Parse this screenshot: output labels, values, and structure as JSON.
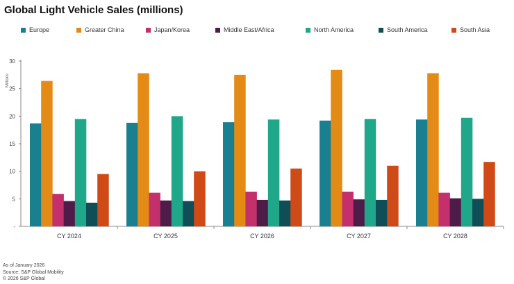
{
  "chart_data": {
    "type": "bar",
    "title": "Global Light Vehicle Sales (millions)",
    "ylabel": "Millions",
    "ylim": [
      0,
      30
    ],
    "yticks": [
      0,
      5,
      10,
      15,
      20,
      25,
      30
    ],
    "categories": [
      "CY 2024",
      "CY 2025",
      "CY 2026",
      "CY 2027",
      "CY 2028"
    ],
    "grid": false,
    "legend_position": "top",
    "series": [
      {
        "name": "Europe",
        "color": "#1a7f8f",
        "values": [
          18.7,
          18.8,
          18.9,
          19.2,
          19.4
        ]
      },
      {
        "name": "Greater China",
        "color": "#e38b14",
        "values": [
          26.4,
          27.8,
          27.5,
          28.4,
          27.8
        ]
      },
      {
        "name": "Japan/Korea",
        "color": "#c4306c",
        "values": [
          5.9,
          6.1,
          6.3,
          6.3,
          6.1
        ]
      },
      {
        "name": "Middle East/Africa",
        "color": "#4f1c4a",
        "values": [
          4.6,
          4.7,
          4.8,
          4.9,
          5.1
        ]
      },
      {
        "name": "North America",
        "color": "#1fa789",
        "values": [
          19.5,
          20.0,
          19.4,
          19.5,
          19.7
        ]
      },
      {
        "name": "South America",
        "color": "#0f4d57",
        "values": [
          4.3,
          4.6,
          4.7,
          4.8,
          5.0
        ]
      },
      {
        "name": "South Asia",
        "color": "#cf4a16",
        "values": [
          9.5,
          10.0,
          10.5,
          11.0,
          11.7
        ]
      }
    ]
  },
  "footnotes": {
    "line1": "As of January 2026",
    "line2": "Source: S&P Global Mobility",
    "line3": "© 2026 S&P Global"
  }
}
